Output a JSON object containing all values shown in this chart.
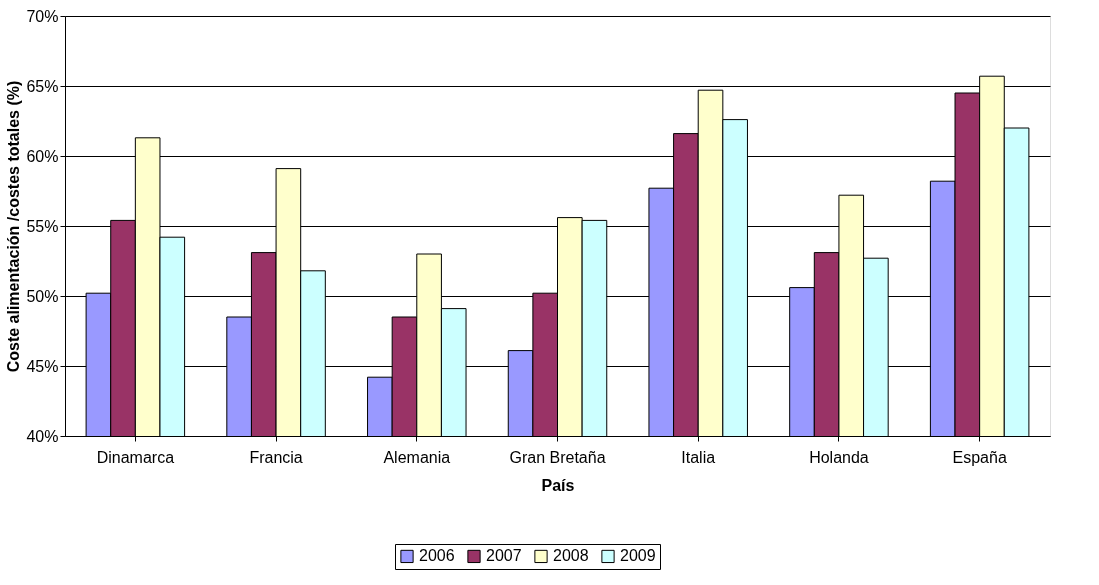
{
  "chart_data": {
    "type": "bar",
    "xlabel": "País",
    "ylabel": "Coste alimentación /costes totales (%)",
    "categories": [
      "Dinamarca",
      "Francia",
      "Alemania",
      "Gran Bretaña",
      "Italia",
      "Holanda",
      "España"
    ],
    "series": [
      {
        "name": "2006",
        "color": "#9999ff",
        "values": [
          50.2,
          48.5,
          44.2,
          46.1,
          57.7,
          50.6,
          58.2
        ]
      },
      {
        "name": "2007",
        "color": "#993366",
        "values": [
          55.4,
          53.1,
          48.5,
          50.2,
          61.6,
          53.1,
          64.5
        ]
      },
      {
        "name": "2008",
        "color": "#ffffcc",
        "values": [
          61.3,
          59.1,
          53.0,
          55.6,
          64.7,
          57.2,
          65.7
        ]
      },
      {
        "name": "2009",
        "color": "#ccffff",
        "values": [
          54.2,
          51.8,
          49.1,
          55.4,
          62.6,
          52.7,
          62.0
        ]
      }
    ],
    "ylim": [
      40,
      70
    ],
    "yticks": [
      {
        "value": 40,
        "label": "40%"
      },
      {
        "value": 45,
        "label": "45%"
      },
      {
        "value": 50,
        "label": "50%"
      },
      {
        "value": 55,
        "label": "55%"
      },
      {
        "value": 60,
        "label": "60%"
      },
      {
        "value": 65,
        "label": "65%"
      },
      {
        "value": 70,
        "label": "70%"
      }
    ],
    "grid": "y",
    "legend": "bottom"
  }
}
